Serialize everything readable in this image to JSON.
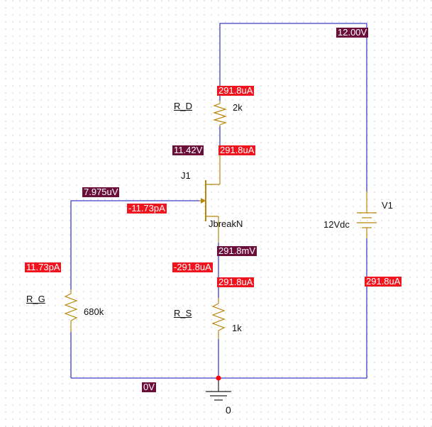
{
  "colors": {
    "voltage_marker": "#6b0f3a",
    "current_marker": "#f0141e",
    "wire": "#3f3fc8",
    "component": "#b8860b",
    "junction": "#ff0000"
  },
  "components": {
    "rd": {
      "ref": "R_D",
      "value": "2k"
    },
    "rg": {
      "ref": "R_G",
      "value": "680k"
    },
    "rs": {
      "ref": "R_S",
      "value": "1k"
    },
    "j1": {
      "ref": "J1",
      "model": "JbreakN"
    },
    "v1": {
      "ref": "V1",
      "value": "12Vdc"
    },
    "ground": {
      "label": "0"
    }
  },
  "markers": {
    "top_voltage": "12.00V",
    "rd_top_current": "291.8uA",
    "drain_voltage": "11.42V",
    "drain_current": "291.8uA",
    "gate_voltage": "7.975uV",
    "gate_current": "-11.73pA",
    "source_voltage": "291.8mV",
    "source_current": "-291.8uA",
    "rs_current": "291.8uA",
    "rg_current": "11.73pA",
    "v1_current": "291.8uA",
    "ground_voltage": "0V"
  }
}
